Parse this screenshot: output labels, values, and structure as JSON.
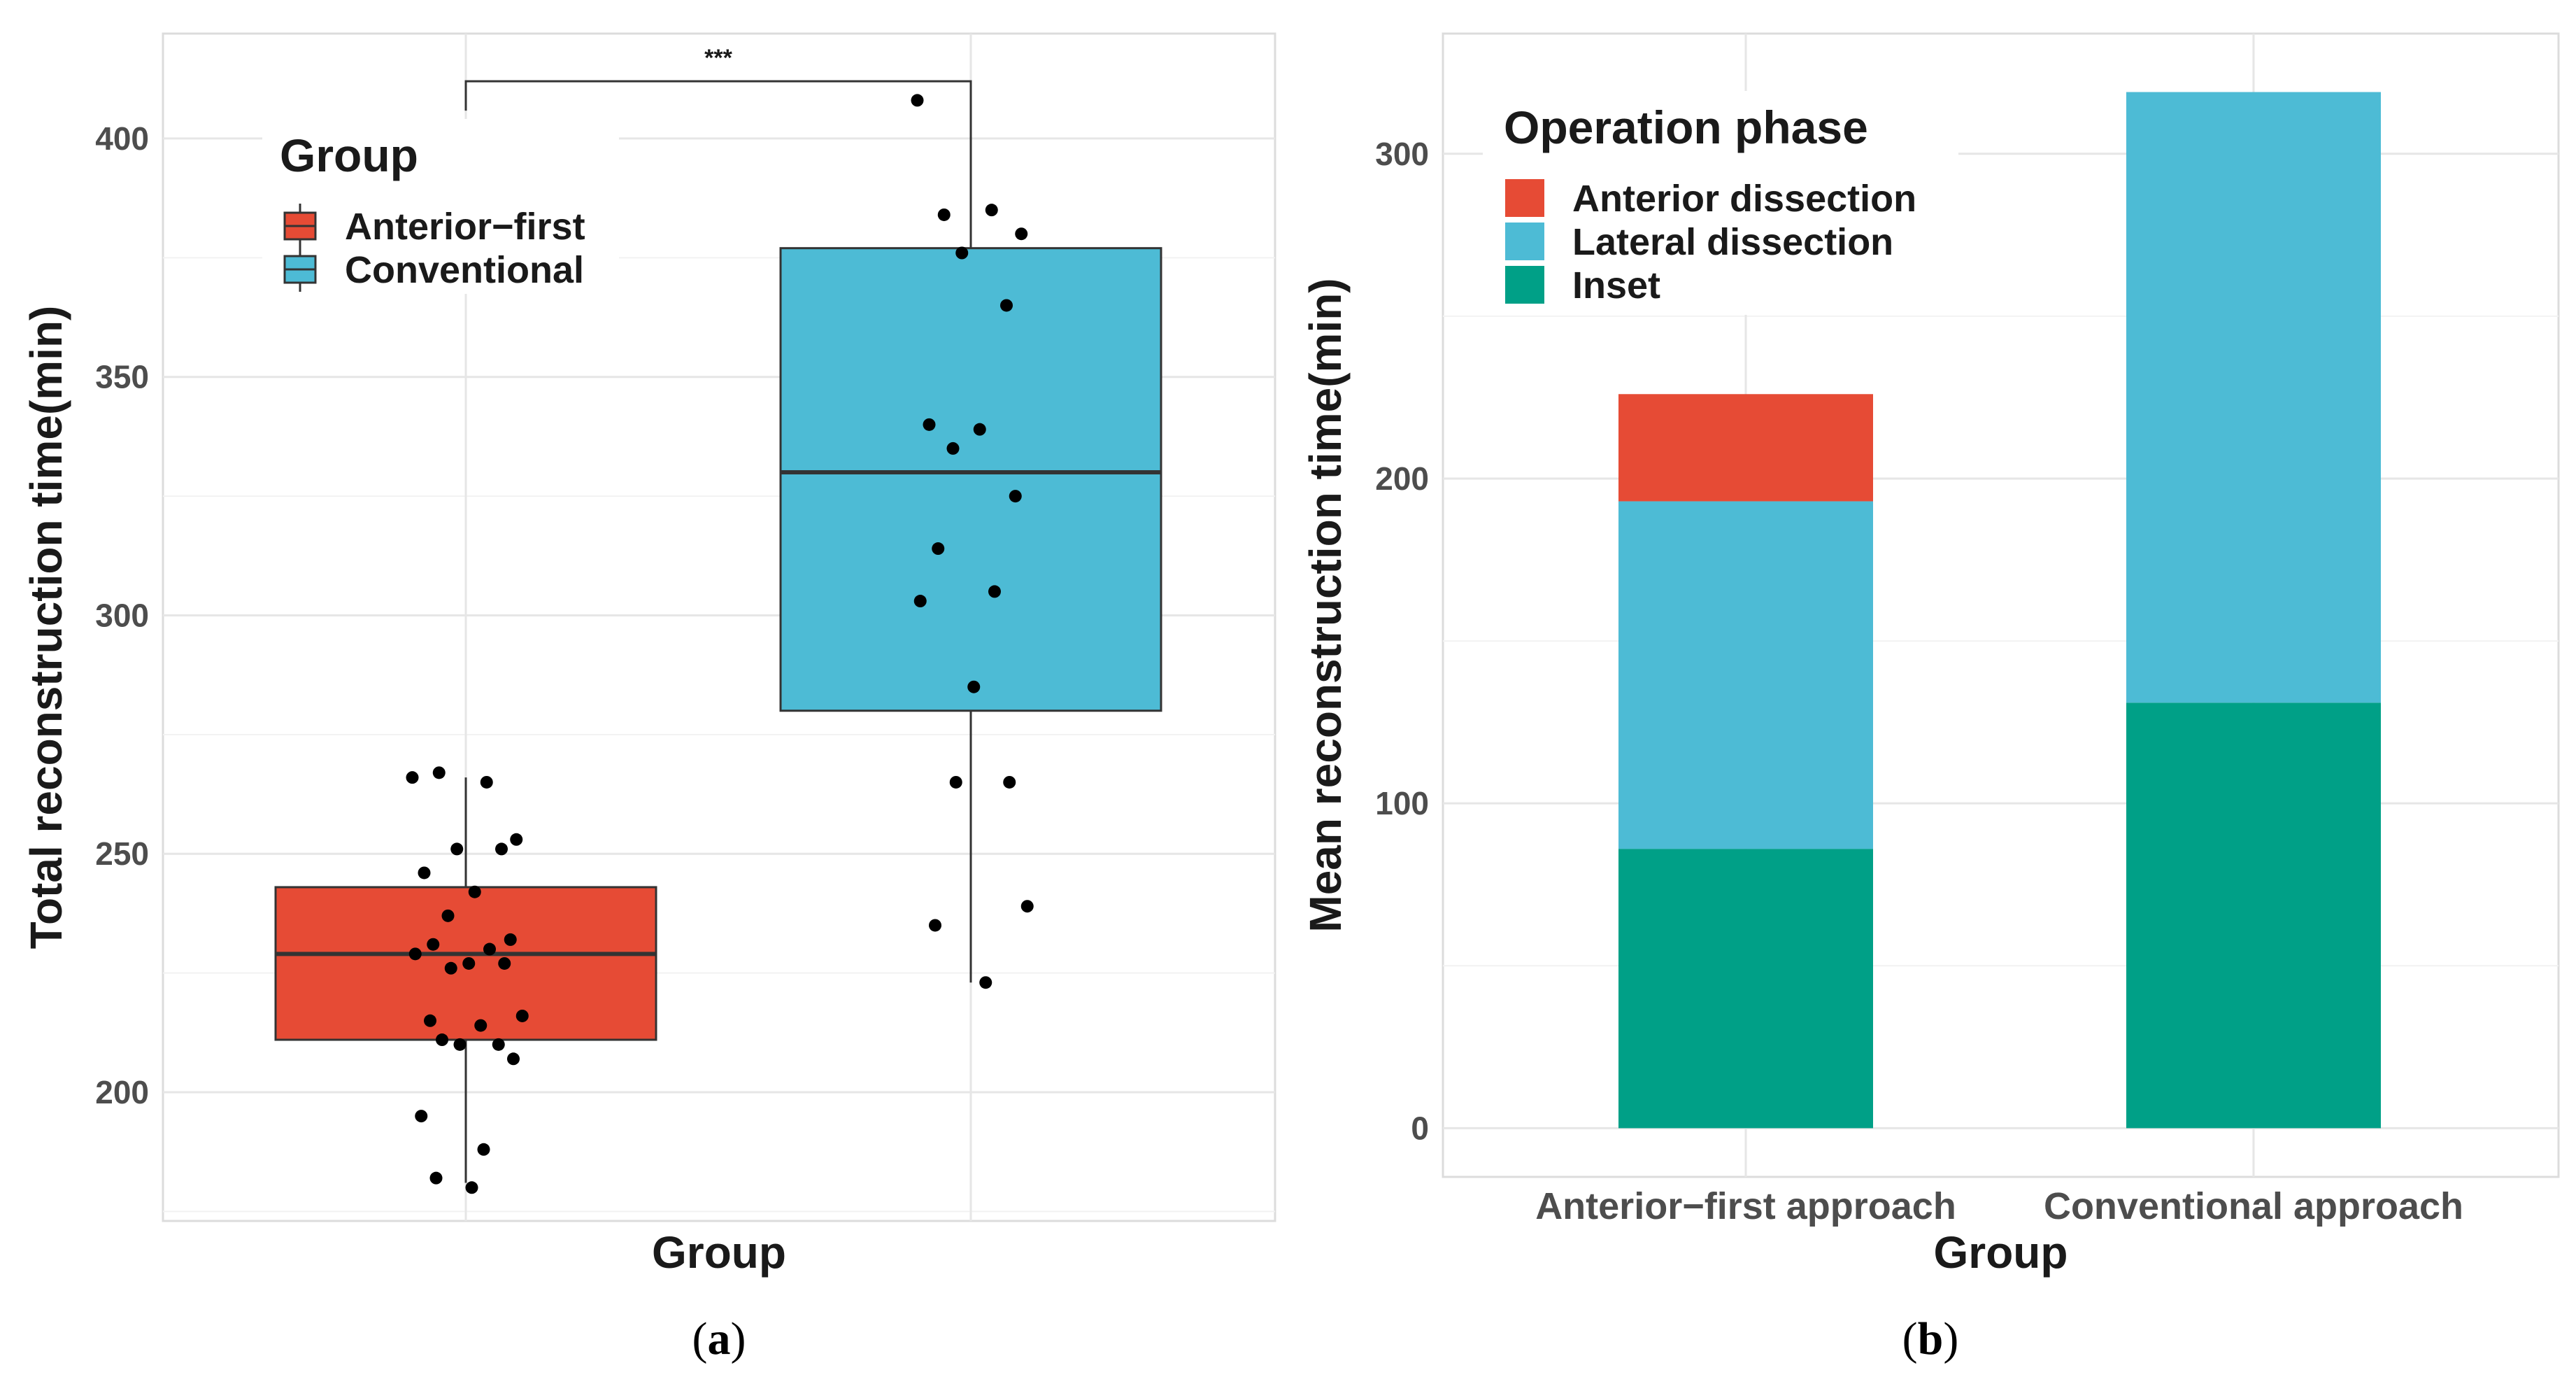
{
  "chart_data": [
    {
      "type": "box",
      "panel_label": "a",
      "title": "",
      "xlabel": "Group",
      "ylabel": "Total reconstruction time(min)",
      "ylim": [
        173,
        422
      ],
      "yticks": [
        200,
        250,
        300,
        350,
        400
      ],
      "grid": true,
      "legend": {
        "title": "Group",
        "position": "top-left",
        "entries": [
          {
            "label": "Anterior−first",
            "color": "#E64B35"
          },
          {
            "label": "Conventional",
            "color": "#4DBBD5"
          }
        ]
      },
      "significance": {
        "label": "***",
        "between": [
          "Anterior-first",
          "Conventional"
        ],
        "y": 412
      },
      "groups": [
        {
          "name": "Anterior-first",
          "color": "#E64B35",
          "q1": 211,
          "median": 229,
          "q3": 243,
          "whisker_low": 181,
          "whisker_high": 266,
          "points": [
            266,
            265,
            267,
            253,
            251,
            251,
            246,
            242,
            237,
            232,
            231,
            230,
            229,
            227,
            227,
            226,
            216,
            215,
            214,
            211,
            210,
            210,
            207,
            195,
            188,
            182,
            180
          ]
        },
        {
          "name": "Conventional",
          "color": "#4DBBD5",
          "q1": 280,
          "median": 330,
          "q3": 377,
          "whisker_low": 223,
          "whisker_high": 408,
          "points": [
            408,
            385,
            384,
            380,
            376,
            365,
            340,
            339,
            335,
            325,
            314,
            305,
            303,
            285,
            265,
            265,
            239,
            235,
            223
          ]
        }
      ]
    },
    {
      "type": "bar",
      "stacked": true,
      "panel_label": "b",
      "title": "",
      "xlabel": "Group",
      "ylabel": "Mean reconstruction time(min)",
      "ylim": [
        -15,
        337
      ],
      "yticks": [
        0,
        100,
        200,
        300
      ],
      "grid": true,
      "categories": [
        "Anterior−first approach",
        "Conventional approach"
      ],
      "legend": {
        "title": "Operation phase",
        "position": "top-left"
      },
      "series": [
        {
          "name": "Inset",
          "color": "#00A087",
          "values": [
            86,
            131
          ]
        },
        {
          "name": "Lateral dissection",
          "color": "#4DBBD5",
          "values": [
            107,
            188
          ]
        },
        {
          "name": "Anterior dissection",
          "color": "#E64B35",
          "values": [
            33,
            0
          ]
        }
      ],
      "legend_order": [
        "Anterior dissection",
        "Lateral dissection",
        "Inset"
      ]
    }
  ]
}
